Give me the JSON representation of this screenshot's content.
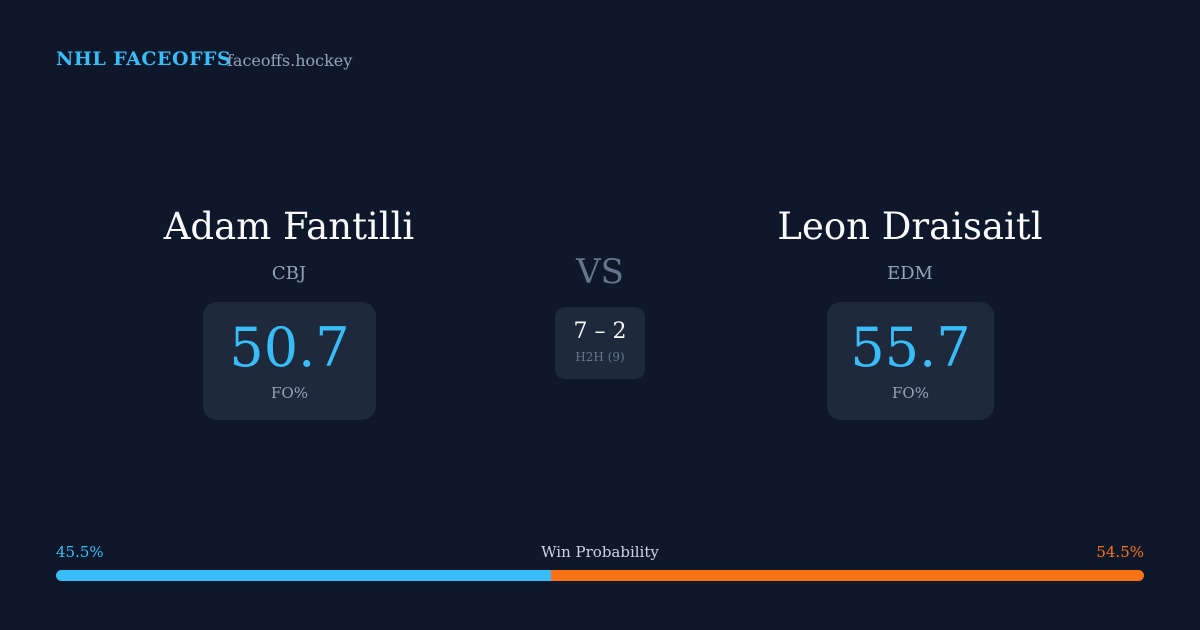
{
  "header": {
    "title": "NHL FACEOFFS",
    "site": "faceoffs.hockey"
  },
  "players": [
    {
      "name": "Adam Fantilli",
      "team": "CBJ",
      "fo_pct": 50.7,
      "fo_label": "FO%"
    },
    {
      "name": "Leon Draisaitl",
      "team": "EDM",
      "fo_pct": 55.7,
      "fo_label": "FO%"
    }
  ],
  "versus": "VS",
  "head_to_head": {
    "score": "7 – 2",
    "label": "H2H (9)"
  },
  "win_probability": {
    "label": "Win Probability",
    "left": {
      "value": 45.5,
      "label": "45.5%",
      "color": "#38bdf8"
    },
    "right": {
      "value": 54.5,
      "label": "54.5%",
      "color": "#f97316"
    }
  }
}
